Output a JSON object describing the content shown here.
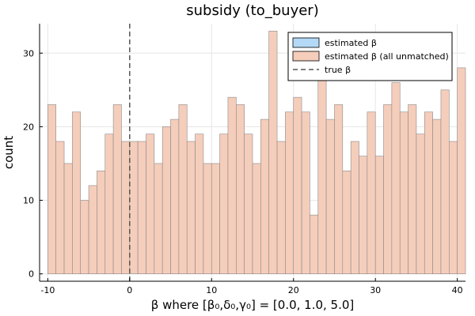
{
  "chart_data": {
    "type": "bar",
    "title": "subsidy (to_buyer)",
    "xlabel": "β where [β₀,δ₀,γ₀] = [0.0, 1.0, 5.0]",
    "ylabel": "count",
    "xlim": [
      -11,
      41
    ],
    "ylim": [
      -1,
      34
    ],
    "xticks": [
      -10,
      0,
      10,
      20,
      30,
      40
    ],
    "yticks": [
      0,
      10,
      20,
      30
    ],
    "grid": true,
    "legend_position": "top-right",
    "bin_start": -10,
    "bin_width": 1,
    "series": [
      {
        "name": "estimated β",
        "values": [],
        "color": "#b3d9f7"
      },
      {
        "name": "estimated β (all unmatched)",
        "color": "#f5cdbb",
        "values": [
          23,
          18,
          15,
          22,
          10,
          12,
          14,
          19,
          23,
          18,
          18,
          18,
          19,
          15,
          20,
          21,
          23,
          18,
          19,
          15,
          15,
          19,
          24,
          23,
          19,
          15,
          21,
          33,
          18,
          22,
          24,
          22,
          8,
          28,
          21,
          23,
          14,
          18,
          16,
          22,
          16,
          23,
          26,
          22,
          23,
          19,
          22,
          21,
          25,
          18,
          28
        ]
      },
      {
        "name": "true β",
        "x": 0,
        "style": "dashed",
        "color": "#555555"
      }
    ]
  }
}
